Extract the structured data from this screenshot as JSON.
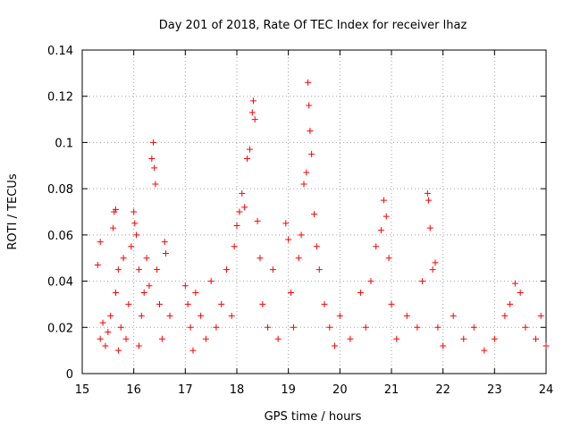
{
  "chart_data": {
    "type": "scatter",
    "title": "Day 201 of 2018, Rate Of TEC Index for receiver lhaz",
    "xlabel": "GPS time / hours",
    "ylabel": "ROTI / TECUs",
    "xlim": [
      15,
      24
    ],
    "ylim": [
      0,
      0.14
    ],
    "x_ticks": [
      "15",
      "16",
      "17",
      "18",
      "19",
      "20",
      "21",
      "22",
      "23",
      "24"
    ],
    "y_ticks": [
      "0",
      "0.02",
      "0.04",
      "0.06",
      "0.08",
      "0.1",
      "0.12",
      "0.14"
    ],
    "grid": true,
    "marker": "+",
    "color": "#ff0000",
    "series": [
      {
        "name": "ROTI",
        "points": [
          [
            15.3,
            0.047
          ],
          [
            15.35,
            0.057
          ],
          [
            15.35,
            0.015
          ],
          [
            15.4,
            0.022
          ],
          [
            15.45,
            0.012
          ],
          [
            15.5,
            0.018
          ],
          [
            15.55,
            0.025
          ],
          [
            15.6,
            0.063
          ],
          [
            15.62,
            0.07
          ],
          [
            15.65,
            0.071
          ],
          [
            15.65,
            0.035
          ],
          [
            15.7,
            0.045
          ],
          [
            15.7,
            0.01
          ],
          [
            15.75,
            0.02
          ],
          [
            15.8,
            0.05
          ],
          [
            15.85,
            0.015
          ],
          [
            15.9,
            0.03
          ],
          [
            15.95,
            0.055
          ],
          [
            16.0,
            0.07
          ],
          [
            16.02,
            0.065
          ],
          [
            16.05,
            0.06
          ],
          [
            16.1,
            0.045
          ],
          [
            16.1,
            0.012
          ],
          [
            16.15,
            0.025
          ],
          [
            16.2,
            0.035
          ],
          [
            16.25,
            0.05
          ],
          [
            16.3,
            0.038
          ],
          [
            16.35,
            0.093
          ],
          [
            16.38,
            0.1
          ],
          [
            16.4,
            0.089
          ],
          [
            16.42,
            0.082
          ],
          [
            16.45,
            0.045
          ],
          [
            16.5,
            0.03
          ],
          [
            16.55,
            0.015
          ],
          [
            16.6,
            0.057
          ],
          [
            16.62,
            0.052
          ],
          [
            16.7,
            0.025
          ],
          [
            17.0,
            0.038
          ],
          [
            17.05,
            0.03
          ],
          [
            17.1,
            0.02
          ],
          [
            17.15,
            0.01
          ],
          [
            17.2,
            0.035
          ],
          [
            17.3,
            0.025
          ],
          [
            17.4,
            0.015
          ],
          [
            17.5,
            0.04
          ],
          [
            17.6,
            0.02
          ],
          [
            17.7,
            0.03
          ],
          [
            17.8,
            0.045
          ],
          [
            17.9,
            0.025
          ],
          [
            17.95,
            0.055
          ],
          [
            18.0,
            0.064
          ],
          [
            18.05,
            0.07
          ],
          [
            18.1,
            0.078
          ],
          [
            18.15,
            0.072
          ],
          [
            18.2,
            0.093
          ],
          [
            18.25,
            0.097
          ],
          [
            18.3,
            0.113
          ],
          [
            18.32,
            0.118
          ],
          [
            18.35,
            0.11
          ],
          [
            18.4,
            0.066
          ],
          [
            18.45,
            0.05
          ],
          [
            18.5,
            0.03
          ],
          [
            18.6,
            0.02
          ],
          [
            18.7,
            0.045
          ],
          [
            18.8,
            0.015
          ],
          [
            18.95,
            0.065
          ],
          [
            19.0,
            0.058
          ],
          [
            19.05,
            0.035
          ],
          [
            19.1,
            0.02
          ],
          [
            19.2,
            0.05
          ],
          [
            19.25,
            0.06
          ],
          [
            19.3,
            0.082
          ],
          [
            19.35,
            0.087
          ],
          [
            19.38,
            0.126
          ],
          [
            19.4,
            0.116
          ],
          [
            19.42,
            0.105
          ],
          [
            19.45,
            0.095
          ],
          [
            19.5,
            0.069
          ],
          [
            19.55,
            0.055
          ],
          [
            19.6,
            0.045
          ],
          [
            19.7,
            0.03
          ],
          [
            19.8,
            0.02
          ],
          [
            19.9,
            0.012
          ],
          [
            20.0,
            0.025
          ],
          [
            20.2,
            0.015
          ],
          [
            20.4,
            0.035
          ],
          [
            20.5,
            0.02
          ],
          [
            20.6,
            0.04
          ],
          [
            20.7,
            0.055
          ],
          [
            20.8,
            0.062
          ],
          [
            20.85,
            0.075
          ],
          [
            20.9,
            0.068
          ],
          [
            20.95,
            0.05
          ],
          [
            21.0,
            0.03
          ],
          [
            21.1,
            0.015
          ],
          [
            21.3,
            0.025
          ],
          [
            21.5,
            0.02
          ],
          [
            21.6,
            0.04
          ],
          [
            21.7,
            0.078
          ],
          [
            21.72,
            0.075
          ],
          [
            21.75,
            0.063
          ],
          [
            21.8,
            0.045
          ],
          [
            21.85,
            0.048
          ],
          [
            21.9,
            0.02
          ],
          [
            22.0,
            0.012
          ],
          [
            22.2,
            0.025
          ],
          [
            22.4,
            0.015
          ],
          [
            22.6,
            0.02
          ],
          [
            22.8,
            0.01
          ],
          [
            23.0,
            0.015
          ],
          [
            23.2,
            0.025
          ],
          [
            23.3,
            0.03
          ],
          [
            23.4,
            0.039
          ],
          [
            23.5,
            0.035
          ],
          [
            23.6,
            0.02
          ],
          [
            23.8,
            0.015
          ],
          [
            23.9,
            0.025
          ],
          [
            24.0,
            0.012
          ]
        ]
      }
    ]
  }
}
